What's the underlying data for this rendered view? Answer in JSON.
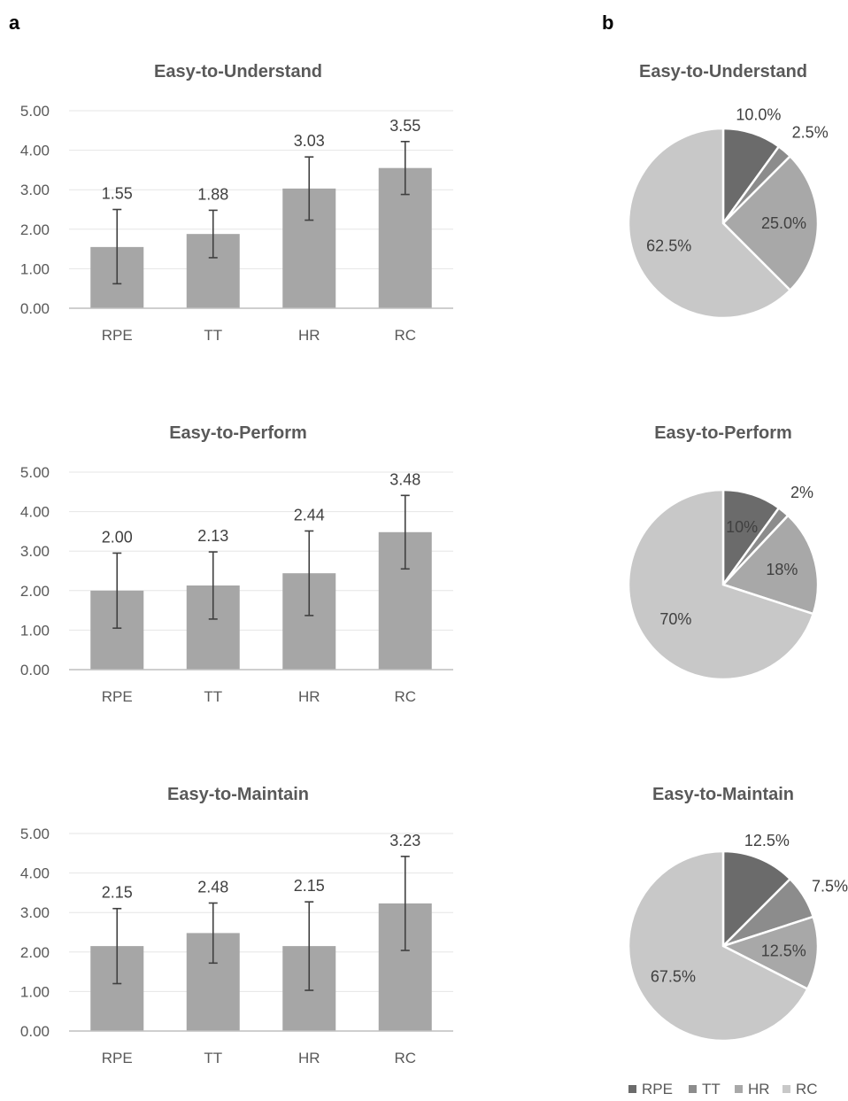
{
  "panel_labels": {
    "a": "a",
    "b": "b"
  },
  "colors": {
    "bar": "#a6a6a6",
    "grid": "#e6e6e6",
    "axis": "#bfbfbf",
    "error": "#404040",
    "pie": [
      "#6b6b6b",
      "#8c8c8c",
      "#a8a8a8",
      "#c8c8c8"
    ]
  },
  "chart_data": [
    {
      "type": "bar",
      "title": "Easy-to-Understand",
      "categories": [
        "RPE",
        "TT",
        "HR",
        "RC"
      ],
      "values": [
        1.55,
        1.88,
        3.03,
        3.55
      ],
      "value_labels": [
        "1.55",
        "1.88",
        "3.03",
        "3.55"
      ],
      "error_low": [
        0.62,
        1.28,
        2.23,
        2.88
      ],
      "error_high": [
        2.5,
        2.48,
        3.83,
        4.22
      ],
      "ylim": [
        0,
        5
      ],
      "yticks": [
        "0.00",
        "1.00",
        "2.00",
        "3.00",
        "4.00",
        "5.00"
      ],
      "grid": true
    },
    {
      "type": "bar",
      "title": "Easy-to-Perform",
      "categories": [
        "RPE",
        "TT",
        "HR",
        "RC"
      ],
      "values": [
        2.0,
        2.13,
        2.44,
        3.48
      ],
      "value_labels": [
        "2.00",
        "2.13",
        "2.44",
        "3.48"
      ],
      "error_low": [
        1.05,
        1.28,
        1.37,
        2.55
      ],
      "error_high": [
        2.95,
        2.98,
        3.51,
        4.41
      ],
      "ylim": [
        0,
        5
      ],
      "yticks": [
        "0.00",
        "1.00",
        "2.00",
        "3.00",
        "4.00",
        "5.00"
      ],
      "grid": true
    },
    {
      "type": "bar",
      "title": "Easy-to-Maintain",
      "categories": [
        "RPE",
        "TT",
        "HR",
        "RC"
      ],
      "values": [
        2.15,
        2.48,
        2.15,
        3.23
      ],
      "value_labels": [
        "2.15",
        "2.48",
        "2.15",
        "3.23"
      ],
      "error_low": [
        1.2,
        1.72,
        1.03,
        2.04
      ],
      "error_high": [
        3.1,
        3.24,
        3.27,
        4.42
      ],
      "ylim": [
        0,
        5
      ],
      "yticks": [
        "0.00",
        "1.00",
        "2.00",
        "3.00",
        "4.00",
        "5.00"
      ],
      "grid": true
    },
    {
      "type": "pie",
      "title": "Easy-to-Understand",
      "categories": [
        "RPE",
        "TT",
        "HR",
        "RC"
      ],
      "values": [
        10.0,
        2.5,
        25.0,
        62.5
      ],
      "labels": [
        "10.0%",
        "2.5%",
        "25.0%",
        "62.5%"
      ]
    },
    {
      "type": "pie",
      "title": "Easy-to-Perform",
      "categories": [
        "RPE",
        "TT",
        "HR",
        "RC"
      ],
      "values": [
        10,
        2,
        18,
        70
      ],
      "labels": [
        "10%",
        "2%",
        "18%",
        "70%"
      ]
    },
    {
      "type": "pie",
      "title": "Easy-to-Maintain",
      "categories": [
        "RPE",
        "TT",
        "HR",
        "RC"
      ],
      "values": [
        12.5,
        7.5,
        12.5,
        67.5
      ],
      "labels": [
        "12.5%",
        "7.5%",
        "12.5%",
        "67.5%"
      ]
    }
  ],
  "legend": {
    "placement": "bottom-right",
    "items": [
      "RPE",
      "TT",
      "HR",
      "RC"
    ]
  }
}
